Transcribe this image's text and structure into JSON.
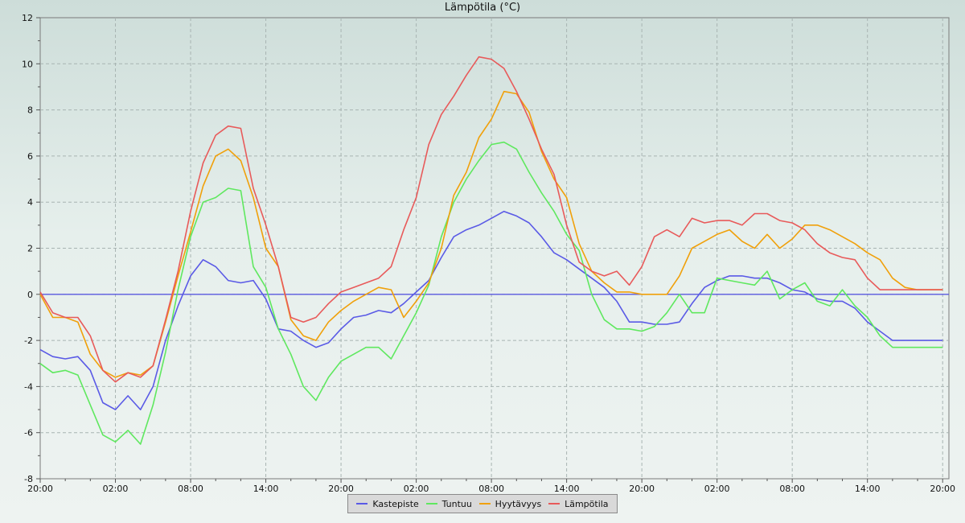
{
  "chart_data": {
    "type": "line",
    "title": "Lämpötila (°C)",
    "xlabel": "",
    "ylabel": "",
    "x_unit": "hours since 20:00 (day 1)",
    "xlim": [
      0,
      72.5
    ],
    "ylim": [
      -8,
      12
    ],
    "y_ticks": [
      -8,
      -6,
      -4,
      -2,
      0,
      2,
      4,
      6,
      8,
      10,
      12
    ],
    "x_tick_labels": [
      "20:00",
      "02:00",
      "08:00",
      "14:00",
      "20:00",
      "02:00",
      "08:00",
      "14:00",
      "20:00",
      "02:00",
      "08:00",
      "14:00",
      "20:00"
    ],
    "grid": true,
    "reference_line": {
      "y": 0,
      "color": "#5a5ae0"
    },
    "legend_position": "bottom",
    "series": [
      {
        "name": "Kastepiste",
        "color": "#5a5ae6",
        "x": [
          0,
          1,
          2,
          3,
          4,
          5,
          6,
          7,
          8,
          9,
          10,
          11,
          12,
          13,
          14,
          15,
          16,
          17,
          18,
          19,
          20,
          21,
          22,
          23,
          24,
          25,
          26,
          27,
          28,
          29,
          30,
          31,
          32,
          33,
          34,
          35,
          36,
          37,
          38,
          39,
          40,
          41,
          42,
          43,
          44,
          45,
          46,
          47,
          48,
          49,
          50,
          51,
          52,
          53,
          54,
          55,
          56,
          57,
          58,
          59,
          60,
          61,
          62,
          63,
          64,
          65,
          66,
          67,
          68,
          69,
          70,
          71,
          72
        ],
        "values": [
          -2.4,
          -2.7,
          -2.8,
          -2.7,
          -3.3,
          -4.7,
          -5.0,
          -4.4,
          -5.0,
          -4.0,
          -2.0,
          -0.5,
          0.8,
          1.5,
          1.2,
          0.6,
          0.5,
          0.6,
          -0.2,
          -1.5,
          -1.6,
          -2.0,
          -2.3,
          -2.1,
          -1.5,
          -1.0,
          -0.9,
          -0.7,
          -0.8,
          -0.4,
          0.1,
          0.6,
          1.6,
          2.5,
          2.8,
          3.0,
          3.3,
          3.6,
          3.4,
          3.1,
          2.5,
          1.8,
          1.5,
          1.1,
          0.7,
          0.3,
          -0.3,
          -1.2,
          -1.2,
          -1.3,
          -1.3,
          -1.2,
          -0.4,
          0.3,
          0.6,
          0.8,
          0.8,
          0.7,
          0.7,
          0.5,
          0.2,
          0.1,
          -0.2,
          -0.3,
          -0.3,
          -0.6,
          -1.2,
          -1.6,
          -2.0,
          -2.0,
          -2.0,
          -2.0,
          -2.0
        ]
      },
      {
        "name": "Tuntuu",
        "color": "#5fe85f",
        "x": [
          0,
          1,
          2,
          3,
          4,
          5,
          6,
          7,
          8,
          9,
          10,
          11,
          12,
          13,
          14,
          15,
          16,
          17,
          18,
          19,
          20,
          21,
          22,
          23,
          24,
          25,
          26,
          27,
          28,
          29,
          30,
          31,
          32,
          33,
          34,
          35,
          36,
          37,
          38,
          39,
          40,
          41,
          42,
          43,
          44,
          45,
          46,
          47,
          48,
          49,
          50,
          51,
          52,
          53,
          54,
          55,
          56,
          57,
          58,
          59,
          60,
          61,
          62,
          63,
          64,
          65,
          66,
          67,
          68,
          69,
          70,
          71,
          72
        ],
        "values": [
          -3.0,
          -3.4,
          -3.3,
          -3.5,
          -4.8,
          -6.1,
          -6.4,
          -5.9,
          -6.5,
          -4.8,
          -2.5,
          0.2,
          2.5,
          4.0,
          4.2,
          4.6,
          4.5,
          1.2,
          0.3,
          -1.5,
          -2.6,
          -4.0,
          -4.6,
          -3.6,
          -2.9,
          -2.6,
          -2.3,
          -2.3,
          -2.8,
          -1.8,
          -0.8,
          0.4,
          2.5,
          4.0,
          5.0,
          5.8,
          6.5,
          6.6,
          6.3,
          5.3,
          4.4,
          3.6,
          2.6,
          1.9,
          0.0,
          -1.1,
          -1.5,
          -1.5,
          -1.6,
          -1.4,
          -0.8,
          0.0,
          -0.8,
          -0.8,
          0.7,
          0.6,
          0.5,
          0.4,
          1.0,
          -0.2,
          0.2,
          0.5,
          -0.3,
          -0.5,
          0.2,
          -0.5,
          -1.0,
          -1.8,
          -2.3,
          -2.3,
          -2.3,
          -2.3,
          -2.3
        ]
      },
      {
        "name": "Hyytävyys",
        "color": "#f0a00a",
        "x": [
          0,
          1,
          2,
          3,
          4,
          5,
          6,
          7,
          8,
          9,
          10,
          11,
          12,
          13,
          14,
          15,
          16,
          17,
          18,
          19,
          20,
          21,
          22,
          23,
          24,
          25,
          26,
          27,
          28,
          29,
          30,
          31,
          32,
          33,
          34,
          35,
          36,
          37,
          38,
          39,
          40,
          41,
          42,
          43,
          44,
          45,
          46,
          47,
          48,
          49,
          50,
          51,
          52,
          53,
          54,
          55,
          56,
          57,
          58,
          59,
          60,
          61,
          62,
          63,
          64,
          65,
          66,
          67,
          68,
          69,
          70,
          71,
          72
        ],
        "values": [
          0.0,
          -1.0,
          -1.0,
          -1.2,
          -2.6,
          -3.3,
          -3.6,
          -3.4,
          -3.5,
          -3.1,
          -1.2,
          0.8,
          2.7,
          4.7,
          6.0,
          6.3,
          5.8,
          4.2,
          2.0,
          1.2,
          -1.1,
          -1.8,
          -2.0,
          -1.2,
          -0.7,
          -0.3,
          0.0,
          0.3,
          0.2,
          -1.0,
          -0.3,
          0.5,
          2.0,
          4.3,
          5.3,
          6.8,
          7.6,
          8.8,
          8.7,
          7.9,
          6.2,
          5.0,
          4.2,
          2.2,
          1.0,
          0.5,
          0.1,
          0.1,
          0.0,
          0.0,
          0.0,
          0.8,
          2.0,
          2.3,
          2.6,
          2.8,
          2.3,
          2.0,
          2.6,
          2.0,
          2.4,
          3.0,
          3.0,
          2.8,
          2.5,
          2.2,
          1.8,
          1.5,
          0.7,
          0.3,
          0.2,
          0.2,
          0.2
        ]
      },
      {
        "name": "Lämpötila",
        "color": "#e85a5a",
        "x": [
          0,
          1,
          2,
          3,
          4,
          5,
          6,
          7,
          8,
          9,
          10,
          11,
          12,
          13,
          14,
          15,
          16,
          17,
          18,
          19,
          20,
          21,
          22,
          23,
          24,
          25,
          26,
          27,
          28,
          29,
          30,
          31,
          32,
          33,
          34,
          35,
          36,
          37,
          38,
          39,
          40,
          41,
          42,
          43,
          44,
          45,
          46,
          47,
          48,
          49,
          50,
          51,
          52,
          53,
          54,
          55,
          56,
          57,
          58,
          59,
          60,
          61,
          62,
          63,
          64,
          65,
          66,
          67,
          68,
          69,
          70,
          71,
          72
        ],
        "values": [
          0.1,
          -0.8,
          -1.0,
          -1.0,
          -1.8,
          -3.3,
          -3.8,
          -3.4,
          -3.6,
          -3.1,
          -1.1,
          1.0,
          3.6,
          5.7,
          6.9,
          7.3,
          7.2,
          4.6,
          3.0,
          1.2,
          -1.0,
          -1.2,
          -1.0,
          -0.4,
          0.1,
          0.3,
          0.5,
          0.7,
          1.2,
          2.8,
          4.2,
          6.5,
          7.8,
          8.6,
          9.5,
          10.3,
          10.2,
          9.8,
          8.8,
          7.6,
          6.3,
          5.2,
          3.0,
          1.4,
          1.0,
          0.8,
          1.0,
          0.4,
          1.2,
          2.5,
          2.8,
          2.5,
          3.3,
          3.1,
          3.2,
          3.2,
          3.0,
          3.5,
          3.5,
          3.2,
          3.1,
          2.8,
          2.2,
          1.8,
          1.6,
          1.5,
          0.7,
          0.2,
          0.2,
          0.2,
          0.2,
          0.2,
          0.2
        ]
      }
    ]
  }
}
